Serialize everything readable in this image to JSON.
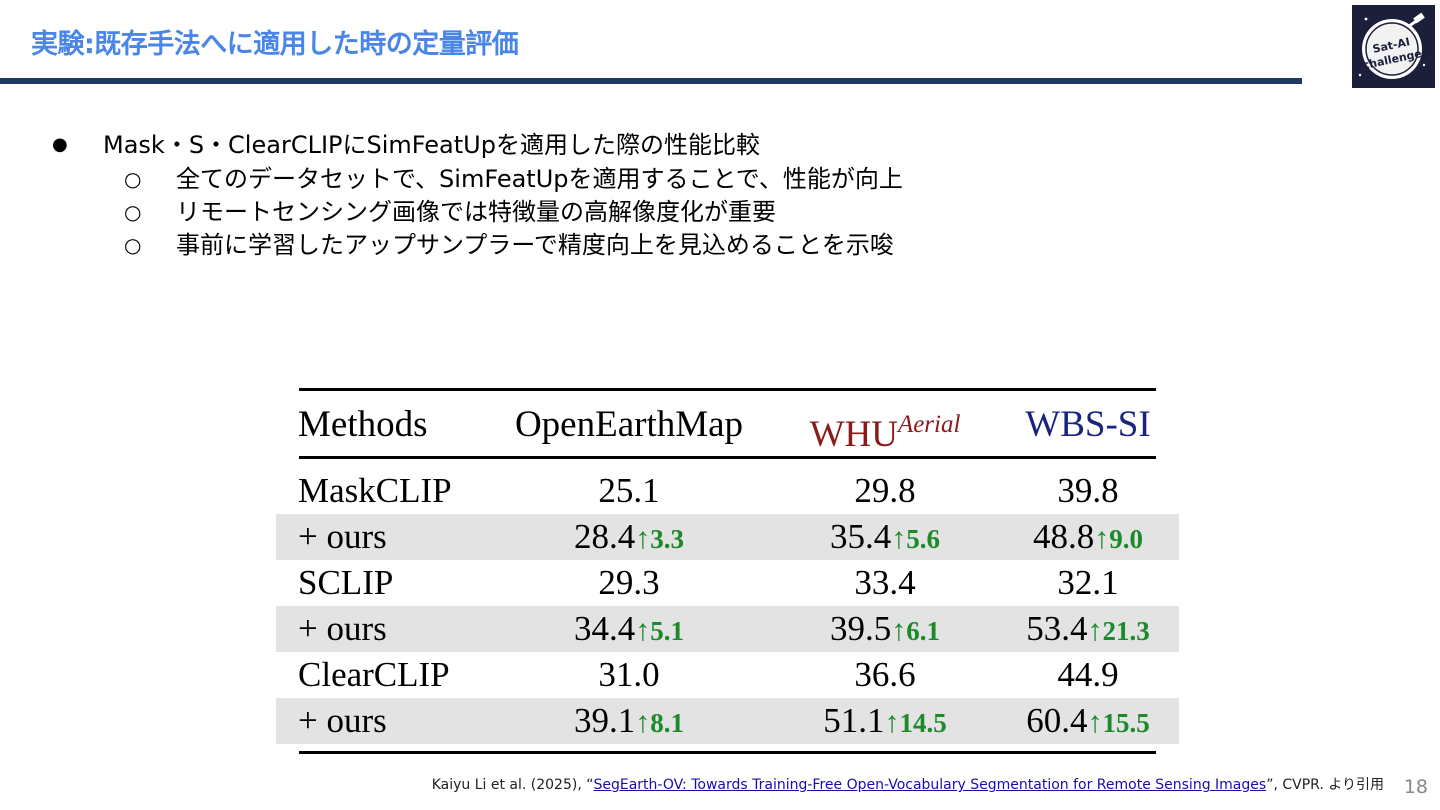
{
  "title": "実験:既存手法へに適用した時の定量評価",
  "logo": {
    "text_line1": "Sat-AI",
    "text_line2": "challenge"
  },
  "bullets": [
    {
      "marker": "●",
      "text": "Mask・S・ClearCLIPにSimFeatUpを適用した際の性能比較"
    },
    {
      "marker": "○",
      "text": "全てのデータセットで、SimFeatUpを適用することで、性能が向上"
    },
    {
      "marker": "○",
      "text": "リモートセンシング画像では特徴量の高解像度化が重要"
    },
    {
      "marker": "○",
      "text": "事前に学習したアップサンプラーで精度向上を見込めることを示唆"
    }
  ],
  "table": {
    "headers": {
      "methods": "Methods",
      "col1": "OpenEarthMap",
      "col2": "WHU",
      "col2_sup": "Aerial",
      "col3": "WBS-SI"
    },
    "rows": [
      {
        "method": "MaskCLIP",
        "v1": "25.1",
        "v2": "29.8",
        "v3": "39.8",
        "g1": "",
        "g2": "",
        "g3": "",
        "shaded": false
      },
      {
        "method": "+ ours",
        "v1": "28.4",
        "g1": "3.3",
        "v2": "35.4",
        "g2": "5.6",
        "v3": "48.8",
        "g3": "9.0",
        "shaded": true
      },
      {
        "method": "SCLIP",
        "v1": "29.3",
        "v2": "33.4",
        "v3": "32.1",
        "g1": "",
        "g2": "",
        "g3": "",
        "shaded": false
      },
      {
        "method": "+ ours",
        "v1": "34.4",
        "g1": "5.1",
        "v2": "39.5",
        "g2": "6.1",
        "v3": "53.4",
        "g3": "21.3",
        "shaded": true
      },
      {
        "method": "ClearCLIP",
        "v1": "31.0",
        "v2": "36.6",
        "v3": "44.9",
        "g1": "",
        "g2": "",
        "g3": "",
        "shaded": false
      },
      {
        "method": "+ ours",
        "v1": "39.1",
        "g1": "8.1",
        "v2": "51.1",
        "g2": "14.5",
        "v3": "60.4",
        "g3": "15.5",
        "shaded": true
      }
    ],
    "gain_arrow": "↑"
  },
  "citation": {
    "prefix": "Kaiyu Li et al. (2025), “",
    "link_text": "SegEarth-OV: Towards Training-Free Open-Vocabulary Segmentation for Remote Sensing Images",
    "suffix": "”, CVPR. より引用"
  },
  "page_number": "18",
  "colors": {
    "title": "#4a86e8",
    "rule": "#1f3a5f",
    "gain": "#1c8a2a",
    "whu": "#8b1a1a",
    "wbs": "#1a237e",
    "shade": "#e3e3e3"
  }
}
